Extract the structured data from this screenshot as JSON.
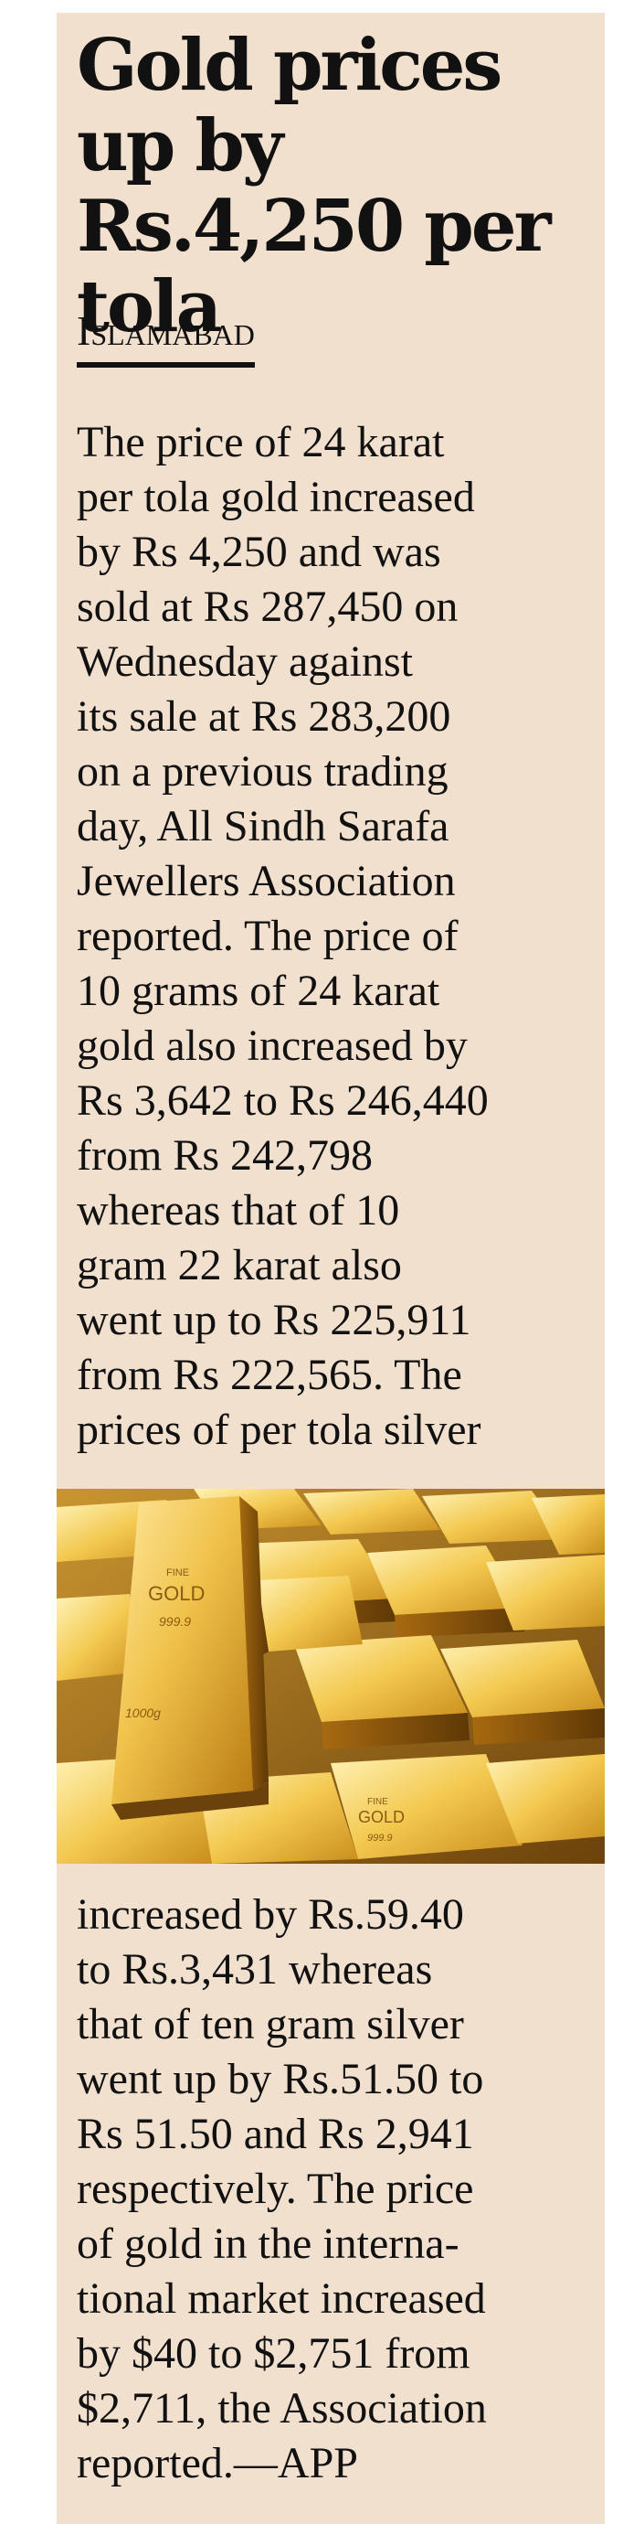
{
  "article": {
    "headline": "Gold prices up by Rs.4,250 per tola",
    "dateline": "Islamabad",
    "paragraph_1": "The price of 24 karat\nper tola gold increased\nby Rs 4,250 and was\nsold at Rs 287,450 on\nWednesday against\nits sale at Rs 283,200\non a previous trading\nday, All Sindh Sarafa\nJewellers Association\nreported. The price of\n10 grams of 24 karat\ngold also increased by\nRs 3,642 to Rs 246,440\nfrom Rs 242,798\nwhereas that of 10\ngram 22 karat also\nwent up to Rs 225,911\nfrom Rs 222,565.  The\nprices of per tola silver",
    "paragraph_2": "increased by Rs.59.40\nto Rs.3,431 whereas\nthat of ten gram silver\nwent up by Rs.51.50 to\nRs 51.50 and Rs 2,941\nrespectively.  The price\nof gold in the interna-\ntional market increased\nby $40 to $2,751 from\n$2,711, the Association\nreported.—APP"
  },
  "photo": {
    "description_icon": "gold-bars-photo",
    "bar_stamps": {
      "main_fine": "FINE",
      "main_gold": "GOLD",
      "main_purity": "999.9",
      "main_weight": "1000g",
      "other_fine": "FINE",
      "other_gold": "GOLD",
      "other_purity": "999.9"
    }
  },
  "colors": {
    "page_background": "#ffffff",
    "article_background": "#f2e0ce",
    "text": "#111111",
    "gold_light": "#f7d774",
    "gold_mid": "#d9a833",
    "gold_dark": "#7a4e0c"
  }
}
